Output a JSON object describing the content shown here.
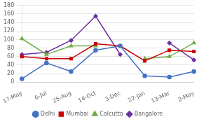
{
  "chart_data": {
    "type": "line",
    "categories": [
      "17-May",
      "6-Jul",
      "25-Aug",
      "14-Oct",
      "3-Dec",
      "22-Jan",
      "13-Mar",
      "2-May"
    ],
    "series": [
      {
        "name": "Delhi",
        "color": "#4472C4",
        "marker": "circle",
        "values": [
          8,
          45,
          25,
          75,
          85,
          15,
          12,
          25
        ]
      },
      {
        "name": "Mumbai",
        "color": "#CC0000",
        "marker": "square",
        "values": [
          60,
          55,
          55,
          90,
          85,
          50,
          75,
          72
        ]
      },
      {
        "name": "Calcutta",
        "color": "#70AD47",
        "marker": "triangle",
        "values": [
          102,
          65,
          85,
          85,
          null,
          55,
          60,
          92
        ]
      },
      {
        "name": "Bangalore",
        "color": "#7030A0",
        "marker": "diamond",
        "values": [
          65,
          70,
          98,
          155,
          65,
          null,
          92,
          52
        ]
      }
    ],
    "ylim": [
      0,
      180
    ],
    "yticks": [
      0,
      20,
      40,
      60,
      80,
      100,
      120,
      140,
      160,
      180
    ],
    "grid": "y",
    "legend": "bottom"
  }
}
